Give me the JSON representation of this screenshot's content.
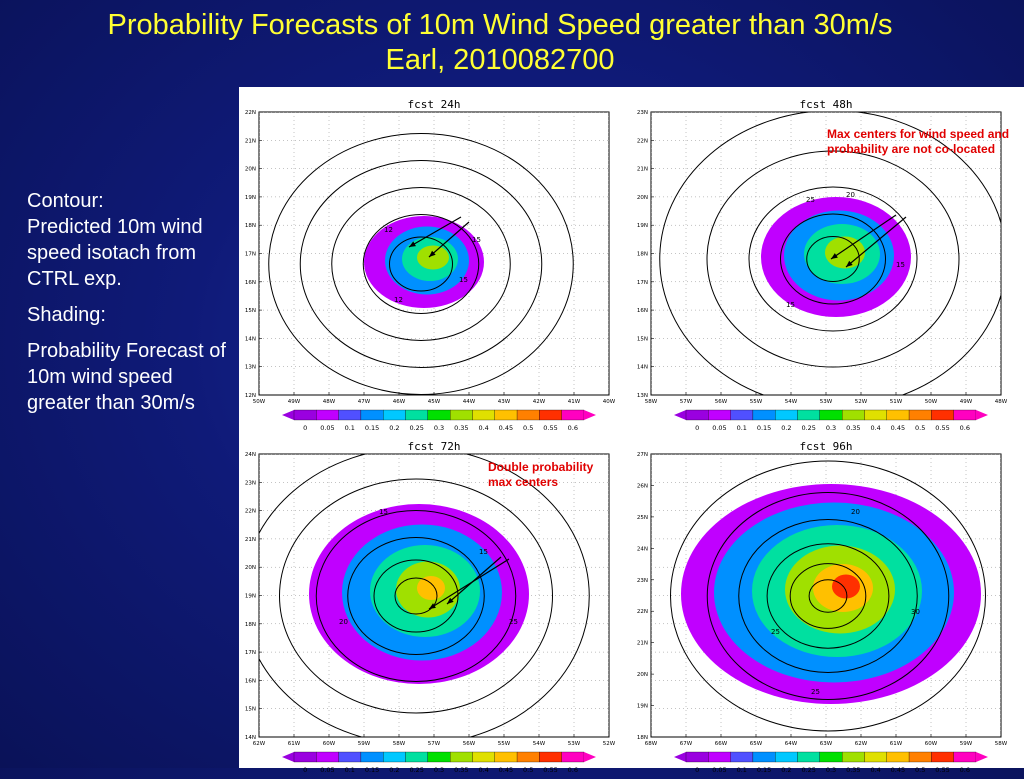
{
  "slide": {
    "title_line1": "Probability Forecasts of 10m Wind Speed greater than 30m/s",
    "title_line2": "Earl, 2010082700"
  },
  "legend": {
    "contour_label": "Contour:",
    "contour_text": "Predicted 10m wind speed isotach from CTRL exp.",
    "shading_label": "Shading:",
    "shading_text": "Probability Forecast of 10m wind speed greater than 30m/s"
  },
  "colorbar": {
    "labels": [
      "0",
      "0.05",
      "0.1",
      "0.15",
      "0.2",
      "0.25",
      "0.3",
      "0.35",
      "0.4",
      "0.45",
      "0.5",
      "0.55",
      "0.6"
    ],
    "colors": [
      "#9a00e0",
      "#c000ff",
      "#5050ff",
      "#0090ff",
      "#00c8ff",
      "#00e0a0",
      "#00e000",
      "#a0e000",
      "#e0e000",
      "#ffc000",
      "#ff8000",
      "#ff3000",
      "#ff00c0"
    ]
  },
  "panels": [
    {
      "title": "fcst 24h",
      "y_labels": [
        "22N",
        "21N",
        "20N",
        "19N",
        "18N",
        "17N",
        "16N",
        "15N",
        "14N",
        "13N",
        "12N"
      ],
      "x_labels": [
        "50W",
        "49W",
        "48W",
        "47W",
        "46W",
        "45W",
        "44W",
        "43W",
        "42W",
        "41W",
        "40W"
      ],
      "contour_labels": [
        "12",
        "15",
        "15",
        "12"
      ]
    },
    {
      "title": "fcst 48h",
      "y_labels": [
        "23N",
        "22N",
        "21N",
        "20N",
        "19N",
        "18N",
        "17N",
        "16N",
        "15N",
        "14N",
        "13N"
      ],
      "x_labels": [
        "58W",
        "57W",
        "56W",
        "55W",
        "54W",
        "53W",
        "52W",
        "51W",
        "50W",
        "49W",
        "48W"
      ],
      "contour_labels": [
        "15",
        "15",
        "20",
        "25"
      ]
    },
    {
      "title": "fcst 72h",
      "y_labels": [
        "24N",
        "23N",
        "22N",
        "21N",
        "20N",
        "19N",
        "18N",
        "17N",
        "16N",
        "15N",
        "14N"
      ],
      "x_labels": [
        "62W",
        "61W",
        "60W",
        "59W",
        "58W",
        "57W",
        "56W",
        "55W",
        "54W",
        "53W",
        "52W"
      ],
      "contour_labels": [
        "15",
        "20",
        "25",
        "15"
      ]
    },
    {
      "title": "fcst 96h",
      "y_labels": [
        "27N",
        "26N",
        "25N",
        "24N",
        "23N",
        "22N",
        "21N",
        "20N",
        "19N",
        "18N"
      ],
      "x_labels": [
        "68W",
        "67W",
        "66W",
        "65W",
        "64W",
        "63W",
        "62W",
        "61W",
        "60W",
        "59W",
        "58W"
      ],
      "contour_labels": [
        "20",
        "25",
        "30",
        "25"
      ]
    }
  ],
  "annotations": {
    "max_centers": "Max centers for  wind speed and probability are not co-located",
    "double_max": "Double probability max centers"
  }
}
